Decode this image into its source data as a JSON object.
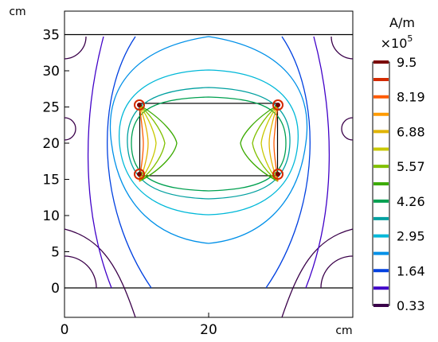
{
  "chart_data": {
    "type": "contour",
    "field_unit": "A/m",
    "field_multiplier": "×10",
    "field_multiplier_exp": "5",
    "x_unit": "cm",
    "y_unit": "cm",
    "xlim": [
      -1,
      39
    ],
    "ylim": [
      -4,
      38
    ],
    "x_ticks": [
      0,
      20
    ],
    "y_ticks": [
      0,
      5,
      10,
      15,
      20,
      25,
      30,
      35
    ],
    "colorbar": {
      "range": [
        0.33,
        9.5
      ],
      "tick_values": [
        9.5,
        8.19,
        6.88,
        5.57,
        4.26,
        2.95,
        1.64,
        0.33
      ],
      "tick_labels": [
        "9.5",
        "8.19",
        "6.88",
        "5.57",
        "4.26",
        "2.95",
        "1.64",
        "0.33"
      ],
      "levels": [
        {
          "value": 9.5,
          "color": "#7a0000"
        },
        {
          "value": 8.84,
          "color": "#d42a00"
        },
        {
          "value": 8.19,
          "color": "#ff5a00"
        },
        {
          "value": 7.53,
          "color": "#ff9a00"
        },
        {
          "value": 6.88,
          "color": "#e0b400"
        },
        {
          "value": 6.22,
          "color": "#c8c800"
        },
        {
          "value": 5.57,
          "color": "#80c000"
        },
        {
          "value": 4.91,
          "color": "#3aaa00"
        },
        {
          "value": 4.26,
          "color": "#00a050"
        },
        {
          "value": 3.6,
          "color": "#00a0a0"
        },
        {
          "value": 2.95,
          "color": "#00b8d8"
        },
        {
          "value": 2.29,
          "color": "#0090e8"
        },
        {
          "value": 1.64,
          "color": "#0040e0"
        },
        {
          "value": 0.98,
          "color": "#4000c8"
        },
        {
          "value": 0.33,
          "color": "#3a004a"
        }
      ]
    },
    "geometry": {
      "outer_box": {
        "x": [
          0,
          39
        ],
        "y": [
          -4,
          38
        ]
      },
      "horizontal_lines_y": [
        0,
        35
      ],
      "inner_rect": {
        "x": [
          10,
          30
        ],
        "y": [
          15.5,
          25.5
        ]
      }
    }
  }
}
